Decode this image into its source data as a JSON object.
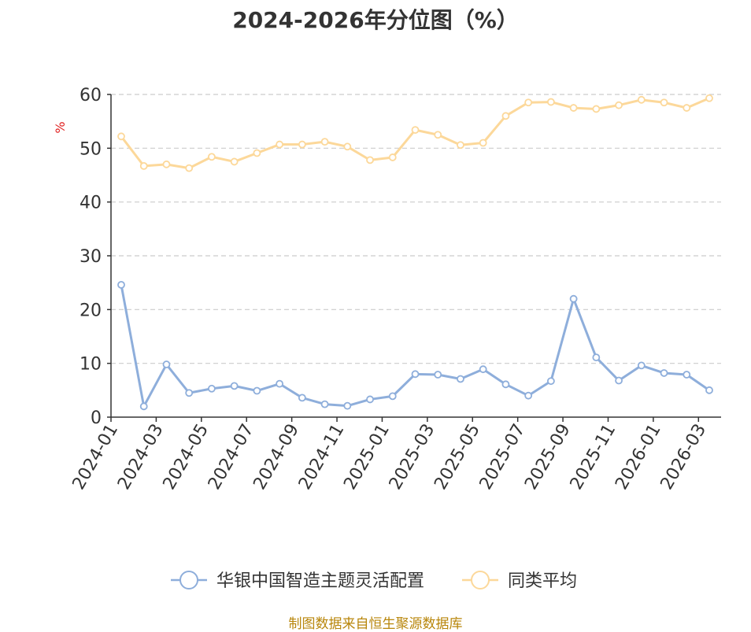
{
  "chart_data": {
    "type": "line",
    "title": "2024-2026年分位图（%）",
    "ylabel": "%",
    "ylim": [
      0,
      60
    ],
    "yticks": [
      0,
      10,
      20,
      30,
      40,
      50,
      60
    ],
    "grid": true,
    "legend_position": "bottom",
    "xtick_labels": [
      "2024-01",
      "2024-03",
      "2024-05",
      "2024-07",
      "2024-09",
      "2024-11",
      "2025-01",
      "2025-03",
      "2025-05",
      "2025-07",
      "2025-09",
      "2025-11",
      "2026-01",
      "2026-03"
    ],
    "x": [
      "2024-01",
      "2024-02",
      "2024-03",
      "2024-04",
      "2024-05",
      "2024-06",
      "2024-07",
      "2024-08",
      "2024-09",
      "2024-10",
      "2024-11",
      "2024-12",
      "2025-01",
      "2025-02",
      "2025-03",
      "2025-04",
      "2025-05",
      "2025-06",
      "2025-07",
      "2025-08",
      "2025-09",
      "2025-10",
      "2025-11",
      "2025-12",
      "2026-01",
      "2026-02",
      "2026-03"
    ],
    "series": [
      {
        "name": "华银中国智造主题灵活配置",
        "color": "#8eaedb",
        "values": [
          24.6,
          2.0,
          9.8,
          4.5,
          5.3,
          5.8,
          4.9,
          6.2,
          3.6,
          2.4,
          2.1,
          3.3,
          3.9,
          8.0,
          7.9,
          7.1,
          8.9,
          6.1,
          4.0,
          6.7,
          22.0,
          11.1,
          6.8,
          9.6,
          8.2,
          7.9,
          5.0
        ]
      },
      {
        "name": "同类平均",
        "color": "#fcd89a",
        "values": [
          52.2,
          46.7,
          47.0,
          46.3,
          48.4,
          47.5,
          49.1,
          50.7,
          50.7,
          51.2,
          50.3,
          47.8,
          48.3,
          53.4,
          52.5,
          50.6,
          51.0,
          56.0,
          58.5,
          58.6,
          57.5,
          57.3,
          58.0,
          59.0,
          58.5,
          57.5,
          59.3
        ]
      }
    ]
  },
  "source_text": "制图数据来自恒生聚源数据库",
  "colors": {
    "axis": "#333333",
    "grid": "#cccccc",
    "unit_label": "#e02020",
    "source": "#b8860b"
  }
}
